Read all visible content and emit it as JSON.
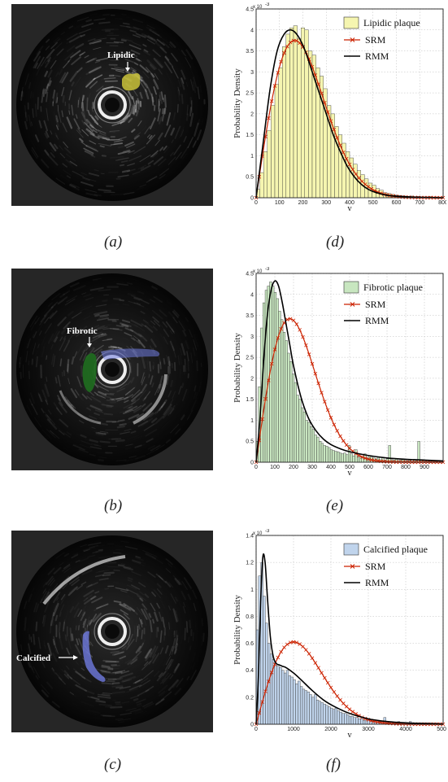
{
  "figure": {
    "ultrasound": [
      {
        "id": "a",
        "caption": "(a)",
        "label": "Lipidic",
        "tissue_color": "#c9c23a"
      },
      {
        "id": "b",
        "caption": "(b)",
        "label": "Fibrotic",
        "tissue_color": "#1f6e1f",
        "secondary_color": "#6f7be0"
      },
      {
        "id": "c",
        "caption": "(c)",
        "label": "Calcified",
        "tissue_color": "#6f7be0"
      }
    ]
  },
  "chart_data": [
    {
      "id": "d",
      "caption": "(d)",
      "type": "bar",
      "xlabel": "y",
      "ylabel": "Probability Density",
      "y_exponent": "x 10",
      "y_exponent_power": "-3",
      "xlim": [
        0,
        800
      ],
      "ylim": [
        0,
        4.5
      ],
      "xticks": [
        "0",
        "100",
        "200",
        "300",
        "400",
        "500",
        "600",
        "700",
        "800"
      ],
      "yticks": [
        "0",
        "0.5",
        "1",
        "1.5",
        "2",
        "2.5",
        "3",
        "3.5",
        "4",
        "4.5"
      ],
      "bar_color": "#f5f5b0",
      "series": [
        {
          "name": "Lipidic plaque",
          "kind": "histogram",
          "bin_width": 16,
          "values": [
            0.2,
            0.6,
            1.1,
            1.6,
            2.2,
            2.7,
            3.1,
            3.6,
            3.9,
            4.05,
            4.1,
            3.8,
            4.05,
            4.0,
            3.5,
            3.4,
            3.1,
            2.9,
            2.6,
            2.2,
            2.0,
            1.7,
            1.5,
            1.3,
            1.1,
            0.95,
            0.8,
            0.65,
            0.55,
            0.45,
            0.35,
            0.3,
            0.22,
            0.18,
            0.12,
            0.1,
            0.08,
            0.06,
            0.05,
            0.04,
            0.03,
            0.04,
            0.02,
            0.03,
            0.02,
            0.02,
            0.03,
            0.01,
            0.02,
            0.01
          ]
        },
        {
          "name": "SRM",
          "kind": "rayleigh",
          "color": "#cc2200",
          "params": {
            "sigma": 165,
            "amp": 3.75
          }
        },
        {
          "name": "RMM",
          "kind": "curve",
          "color": "#000000",
          "x": [
            0,
            30,
            60,
            90,
            120,
            150,
            180,
            210,
            240,
            270,
            300,
            330,
            360,
            390,
            420,
            450,
            480,
            510,
            560,
            620,
            700,
            800
          ],
          "y": [
            0,
            1.3,
            2.6,
            3.5,
            3.9,
            4.0,
            3.85,
            3.5,
            3.0,
            2.5,
            2.0,
            1.5,
            1.1,
            0.75,
            0.5,
            0.32,
            0.2,
            0.13,
            0.06,
            0.03,
            0.01,
            0.0
          ]
        }
      ]
    },
    {
      "id": "e",
      "caption": "(e)",
      "type": "bar",
      "xlabel": "y",
      "ylabel": "Probability Density",
      "y_exponent": "x 10",
      "y_exponent_power": "-3",
      "xlim": [
        0,
        1000
      ],
      "ylim": [
        0,
        4.5
      ],
      "xticks": [
        "0",
        "100",
        "200",
        "300",
        "400",
        "500",
        "600",
        "700",
        "800",
        "900"
      ],
      "yticks": [
        "0",
        "0.5",
        "1",
        "1.5",
        "2",
        "2.5",
        "3",
        "3.5",
        "4",
        "4.5"
      ],
      "bar_color": "#c8e6c0",
      "series": [
        {
          "name": "Fibrotic plaque",
          "kind": "histogram",
          "bin_width": 12,
          "values": [
            0.5,
            1.8,
            3.2,
            3.8,
            4.1,
            4.2,
            4.3,
            4.2,
            4.05,
            3.9,
            3.6,
            3.4,
            3.1,
            2.9,
            2.6,
            2.4,
            2.1,
            1.9,
            1.6,
            1.5,
            1.3,
            1.2,
            1.0,
            0.95,
            0.85,
            0.78,
            0.65,
            0.6,
            0.5,
            0.45,
            0.4,
            0.38,
            0.35,
            0.3,
            0.28,
            0.26,
            0.25,
            0.22,
            0.2,
            0.22,
            0.18,
            0.4,
            0.2,
            0.15,
            0.3,
            0.12,
            0.15,
            0.1,
            0.2,
            0.1,
            0.15,
            0.12,
            0.1,
            0.08,
            0.12,
            0.06,
            0.1,
            0.05,
            0.08,
            0.4,
            0.06,
            0.05,
            0.08,
            0.04,
            0.05,
            0.06,
            0.04,
            0.03,
            0.05,
            0.02,
            0.06,
            0.03,
            0.5,
            0.03,
            0.04,
            0.02,
            0.03,
            0.02,
            0.04,
            0.03,
            0.02
          ]
        },
        {
          "name": "SRM",
          "kind": "rayleigh",
          "color": "#cc2200",
          "params": {
            "sigma": 180,
            "amp": 3.42
          }
        },
        {
          "name": "RMM",
          "kind": "curve",
          "color": "#000000",
          "x": [
            0,
            20,
            40,
            60,
            80,
            100,
            120,
            140,
            160,
            180,
            200,
            240,
            280,
            320,
            360,
            400,
            450,
            500,
            600,
            700,
            800,
            900,
            1000
          ],
          "y": [
            0,
            1.0,
            2.4,
            3.5,
            4.1,
            4.32,
            4.2,
            3.8,
            3.3,
            2.8,
            2.3,
            1.55,
            1.05,
            0.75,
            0.55,
            0.42,
            0.32,
            0.25,
            0.16,
            0.1,
            0.07,
            0.05,
            0.03
          ]
        }
      ]
    },
    {
      "id": "f",
      "caption": "(f)",
      "type": "bar",
      "xlabel": "y",
      "ylabel": "Probability Density",
      "y_exponent": "x 10",
      "y_exponent_power": "-3",
      "xlim": [
        0,
        5000
      ],
      "ylim": [
        0,
        1.4
      ],
      "xticks": [
        "0",
        "1000",
        "2000",
        "3000",
        "4000",
        "5000"
      ],
      "yticks": [
        "0",
        "0.2",
        "0.4",
        "0.6",
        "0.8",
        "1",
        "1.2",
        "1.4"
      ],
      "bar_color": "#c0d4ec",
      "series": [
        {
          "name": "Calcified plaque",
          "kind": "histogram",
          "bin_width": 62,
          "values": [
            0.7,
            1.1,
            1.2,
            0.95,
            0.75,
            0.6,
            0.52,
            0.48,
            0.45,
            0.43,
            0.42,
            0.4,
            0.38,
            0.4,
            0.36,
            0.35,
            0.33,
            0.3,
            0.32,
            0.28,
            0.26,
            0.25,
            0.24,
            0.22,
            0.2,
            0.22,
            0.18,
            0.17,
            0.16,
            0.15,
            0.14,
            0.13,
            0.12,
            0.11,
            0.12,
            0.1,
            0.09,
            0.08,
            0.08,
            0.07,
            0.06,
            0.06,
            0.05,
            0.05,
            0.04,
            0.04,
            0.03,
            0.03,
            0.03,
            0.02,
            0.02,
            0.02,
            0.02,
            0.02,
            0.02,
            0.05,
            0.02,
            0.01,
            0.02,
            0.01,
            0.01,
            0.02,
            0.01,
            0.01,
            0.01,
            0.01,
            0.02,
            0.01,
            0.01,
            0.01,
            0.01,
            0.01,
            0.01,
            0.01,
            0.01,
            0.01,
            0.01,
            0.01,
            0.01,
            0.01
          ]
        },
        {
          "name": "SRM",
          "kind": "rayleigh",
          "color": "#cc2200",
          "params": {
            "sigma": 1000,
            "amp": 0.61
          }
        },
        {
          "name": "RMM",
          "kind": "curve",
          "color": "#000000",
          "x": [
            0,
            60,
            120,
            180,
            240,
            300,
            380,
            460,
            540,
            620,
            700,
            800,
            1000,
            1200,
            1500,
            1800,
            2100,
            2500,
            3000,
            3500,
            4000,
            4500,
            5000
          ],
          "y": [
            0,
            0.35,
            0.9,
            1.24,
            1.2,
            0.95,
            0.65,
            0.5,
            0.45,
            0.44,
            0.43,
            0.42,
            0.38,
            0.33,
            0.25,
            0.18,
            0.13,
            0.08,
            0.04,
            0.02,
            0.01,
            0.005,
            0.0
          ]
        }
      ]
    }
  ]
}
